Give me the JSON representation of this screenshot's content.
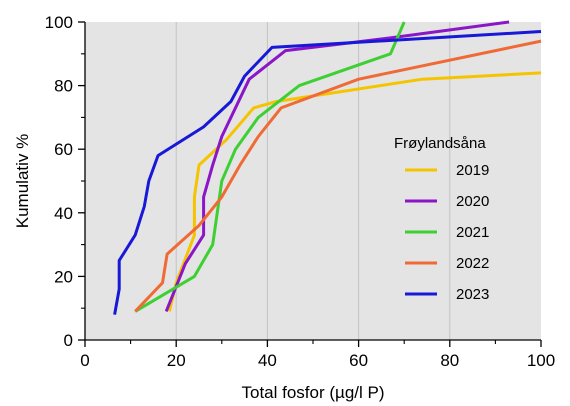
{
  "chart_data": {
    "type": "line",
    "title": "",
    "xlabel": "Total fosfor (µg/l P)",
    "ylabel": "Kumulativ %",
    "xlim": [
      0,
      100
    ],
    "ylim": [
      0,
      100
    ],
    "x_ticks": [
      0,
      20,
      40,
      60,
      80,
      100
    ],
    "y_ticks": [
      0,
      20,
      40,
      60,
      80,
      100
    ],
    "x_minor_ticks": [
      10,
      30,
      50,
      70,
      90
    ],
    "y_minor_ticks": [
      10,
      30,
      50,
      70,
      90
    ],
    "grid": "vertical",
    "background": "#e4e4e4",
    "legend": {
      "title": "Frøylandsåna",
      "placement": "right"
    },
    "series": [
      {
        "name": "2019",
        "color": "#f5c400",
        "points": [
          [
            18.5,
            9
          ],
          [
            20,
            18
          ],
          [
            24,
            33
          ],
          [
            24,
            45
          ],
          [
            25,
            55
          ],
          [
            31,
            63
          ],
          [
            37,
            73
          ],
          [
            42,
            75
          ],
          [
            74,
            82
          ],
          [
            100,
            84
          ]
        ]
      },
      {
        "name": "2020",
        "color": "#8a16c7",
        "points": [
          [
            17.8,
            9
          ],
          [
            22,
            24
          ],
          [
            26,
            33
          ],
          [
            26,
            45
          ],
          [
            28,
            55
          ],
          [
            30,
            64
          ],
          [
            36,
            82
          ],
          [
            44,
            91
          ],
          [
            67,
            95
          ],
          [
            93,
            100
          ]
        ]
      },
      {
        "name": "2021",
        "color": "#3ecf33",
        "points": [
          [
            11,
            9
          ],
          [
            24,
            20
          ],
          [
            28,
            30
          ],
          [
            30,
            50
          ],
          [
            33,
            60
          ],
          [
            38,
            70
          ],
          [
            47,
            80
          ],
          [
            67,
            90
          ],
          [
            70,
            100
          ]
        ]
      },
      {
        "name": "2022",
        "color": "#f06a35",
        "points": [
          [
            11,
            9
          ],
          [
            17,
            18
          ],
          [
            18,
            27
          ],
          [
            25,
            36
          ],
          [
            30,
            45
          ],
          [
            34,
            55
          ],
          [
            38,
            64
          ],
          [
            43,
            73
          ],
          [
            60,
            82
          ],
          [
            100,
            94
          ]
        ]
      },
      {
        "name": "2023",
        "color": "#1818d8",
        "points": [
          [
            6.5,
            8
          ],
          [
            7.5,
            16
          ],
          [
            7.5,
            25
          ],
          [
            11,
            33
          ],
          [
            13,
            42
          ],
          [
            14,
            50
          ],
          [
            16,
            58
          ],
          [
            26,
            67
          ],
          [
            32,
            75
          ],
          [
            35,
            83
          ],
          [
            41,
            92
          ],
          [
            100,
            97
          ]
        ]
      }
    ]
  }
}
